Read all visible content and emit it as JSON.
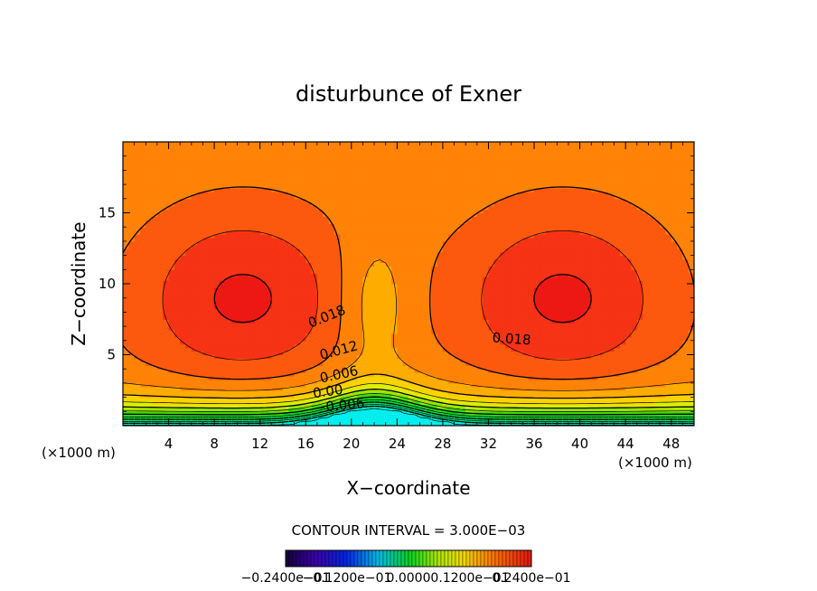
{
  "chart_data": {
    "type": "contour",
    "title": "disturbunce of Exner",
    "xlabel": "X−coordinate",
    "ylabel": "Z−coordinate",
    "x_unit": "(×1000 m)",
    "y_unit": "(×1000 m)",
    "xlim": [
      0,
      50
    ],
    "ylim": [
      0,
      20
    ],
    "x_ticks": [
      4,
      8,
      12,
      16,
      20,
      24,
      28,
      32,
      36,
      40,
      44,
      48
    ],
    "y_ticks": [
      5,
      10,
      15
    ],
    "field": {
      "min": -0.024,
      "max": 0.024,
      "background": 0.016,
      "surface_value": -0.016,
      "surface_slope": 0.0065,
      "saddle_dip": 0.0045,
      "saddle_x": 22,
      "saddle_z": 8.5,
      "lobes": [
        {
          "x": 10.5,
          "z": 9,
          "amplitude": 0.0085
        },
        {
          "x": 38.5,
          "z": 9,
          "amplitude": 0.0085
        }
      ]
    },
    "contour_interval": 0.003,
    "contour_interval_text": "CONTOUR INTERVAL = 3.000E−03",
    "contour_labels": [
      {
        "text": "0.018",
        "x": 18.0,
        "z": 7.4,
        "angle": -22
      },
      {
        "text": "0.018",
        "x": 34.0,
        "z": 5.8,
        "angle": 4
      },
      {
        "text": "0.012",
        "x": 19.0,
        "z": 5.0,
        "angle": -15
      },
      {
        "text": "0.006",
        "x": 19.0,
        "z": 3.3,
        "angle": -12
      },
      {
        "text": "0.00",
        "x": 18.0,
        "z": 2.1,
        "angle": -8
      },
      {
        "text": "−0.006",
        "x": 19.0,
        "z": 1.1,
        "angle": -6
      }
    ],
    "colorbar": {
      "labels": [
        "−0.2400e−01",
        "−0.1200e−01",
        "0.0000",
        "0.1200e−01",
        "0.2400e−01"
      ]
    }
  }
}
